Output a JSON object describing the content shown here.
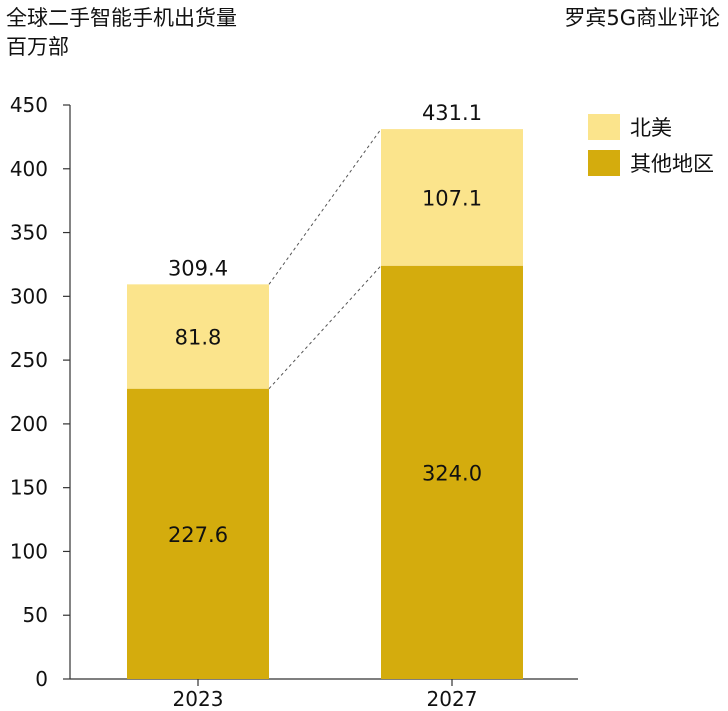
{
  "header": {
    "title": "全球二手智能手机出货量",
    "unit": "百万部",
    "source": "罗宾5G商业评论"
  },
  "colors": {
    "north_america": "#FBE48C",
    "other_regions": "#D4AC0D",
    "axis": "#333333",
    "connector": "#555555"
  },
  "chart_data": {
    "type": "bar",
    "stacked": true,
    "title": "全球二手智能手机出货量",
    "ylabel": "百万部",
    "xlabel": "",
    "categories": [
      "2023",
      "2027"
    ],
    "series": [
      {
        "name": "其他地区",
        "values": [
          227.6,
          324.0
        ],
        "labels": [
          "227.6",
          "324.0"
        ]
      },
      {
        "name": "北美",
        "values": [
          81.8,
          107.1
        ],
        "labels": [
          "81.8",
          "107.1"
        ]
      }
    ],
    "totals": [
      309.4,
      431.1
    ],
    "total_labels": [
      "309.4",
      "431.1"
    ],
    "ylim": [
      0,
      450
    ],
    "yticks": [
      0,
      50,
      100,
      150,
      200,
      250,
      300,
      350,
      400,
      450
    ],
    "grid": false,
    "legend": [
      {
        "label": "北美"
      },
      {
        "label": "其他地区"
      }
    ],
    "legend_position": "top-right",
    "connectors": true
  }
}
